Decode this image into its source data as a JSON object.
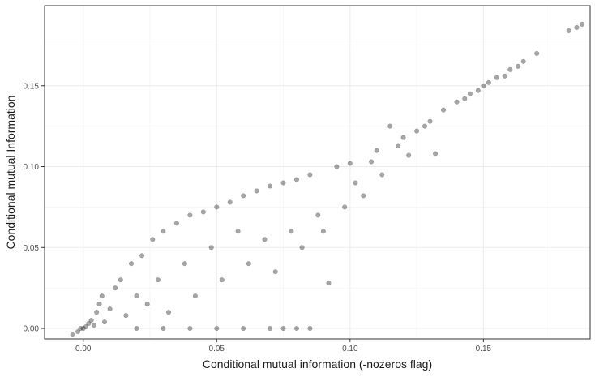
{
  "chart_data": {
    "type": "scatter",
    "title": "",
    "xlabel": "Conditional mutual information (-nozeros flag)",
    "ylabel": "Conditional mutual Information",
    "xlim": [
      -0.0145,
      0.19
    ],
    "ylim": [
      -0.0065,
      0.1995
    ],
    "x_ticks": [
      0.0,
      0.05,
      0.1,
      0.15
    ],
    "x_tick_labels": [
      "0.00",
      "0.05",
      "0.10",
      "0.15"
    ],
    "y_ticks": [
      0.0,
      0.05,
      0.1,
      0.15
    ],
    "y_tick_labels": [
      "0.00",
      "0.05",
      "0.10",
      "0.15"
    ],
    "grid": true,
    "point_color": "#000000",
    "point_alpha": 0.35,
    "points": [
      [
        -0.004,
        -0.004
      ],
      [
        -0.002,
        -0.002
      ],
      [
        -0.001,
        0.0
      ],
      [
        0.0,
        0.0
      ],
      [
        0.001,
        0.001
      ],
      [
        0.002,
        0.003
      ],
      [
        0.003,
        0.005
      ],
      [
        0.004,
        0.002
      ],
      [
        0.005,
        0.01
      ],
      [
        0.006,
        0.015
      ],
      [
        0.007,
        0.02
      ],
      [
        0.008,
        0.004
      ],
      [
        0.01,
        0.012
      ],
      [
        0.012,
        0.025
      ],
      [
        0.014,
        0.03
      ],
      [
        0.016,
        0.008
      ],
      [
        0.018,
        0.04
      ],
      [
        0.02,
        0.02
      ],
      [
        0.022,
        0.045
      ],
      [
        0.024,
        0.015
      ],
      [
        0.026,
        0.055
      ],
      [
        0.028,
        0.03
      ],
      [
        0.03,
        0.06
      ],
      [
        0.032,
        0.01
      ],
      [
        0.035,
        0.065
      ],
      [
        0.038,
        0.04
      ],
      [
        0.04,
        0.07
      ],
      [
        0.042,
        0.02
      ],
      [
        0.045,
        0.072
      ],
      [
        0.048,
        0.05
      ],
      [
        0.05,
        0.075
      ],
      [
        0.052,
        0.03
      ],
      [
        0.055,
        0.078
      ],
      [
        0.058,
        0.06
      ],
      [
        0.06,
        0.082
      ],
      [
        0.062,
        0.04
      ],
      [
        0.065,
        0.085
      ],
      [
        0.068,
        0.055
      ],
      [
        0.07,
        0.088
      ],
      [
        0.072,
        0.035
      ],
      [
        0.075,
        0.09
      ],
      [
        0.078,
        0.06
      ],
      [
        0.08,
        0.092
      ],
      [
        0.082,
        0.05
      ],
      [
        0.085,
        0.095
      ],
      [
        0.088,
        0.07
      ],
      [
        0.09,
        0.06
      ],
      [
        0.092,
        0.028
      ],
      [
        0.095,
        0.1
      ],
      [
        0.098,
        0.075
      ],
      [
        0.1,
        0.102
      ],
      [
        0.102,
        0.09
      ],
      [
        0.105,
        0.082
      ],
      [
        0.108,
        0.103
      ],
      [
        0.11,
        0.11
      ],
      [
        0.112,
        0.095
      ],
      [
        0.115,
        0.125
      ],
      [
        0.118,
        0.113
      ],
      [
        0.12,
        0.118
      ],
      [
        0.122,
        0.107
      ],
      [
        0.125,
        0.122
      ],
      [
        0.128,
        0.125
      ],
      [
        0.13,
        0.128
      ],
      [
        0.132,
        0.108
      ],
      [
        0.135,
        0.135
      ],
      [
        0.14,
        0.14
      ],
      [
        0.143,
        0.142
      ],
      [
        0.145,
        0.145
      ],
      [
        0.148,
        0.147
      ],
      [
        0.15,
        0.15
      ],
      [
        0.152,
        0.152
      ],
      [
        0.155,
        0.155
      ],
      [
        0.158,
        0.156
      ],
      [
        0.16,
        0.16
      ],
      [
        0.163,
        0.162
      ],
      [
        0.165,
        0.165
      ],
      [
        0.17,
        0.17
      ],
      [
        0.182,
        0.184
      ],
      [
        0.185,
        0.186
      ],
      [
        0.187,
        0.188
      ],
      [
        0.02,
        0.0
      ],
      [
        0.03,
        0.0
      ],
      [
        0.04,
        0.0
      ],
      [
        0.05,
        0.0
      ],
      [
        0.06,
        0.0
      ],
      [
        0.07,
        0.0
      ],
      [
        0.075,
        0.0
      ],
      [
        0.08,
        0.0
      ],
      [
        0.085,
        0.0
      ]
    ]
  }
}
